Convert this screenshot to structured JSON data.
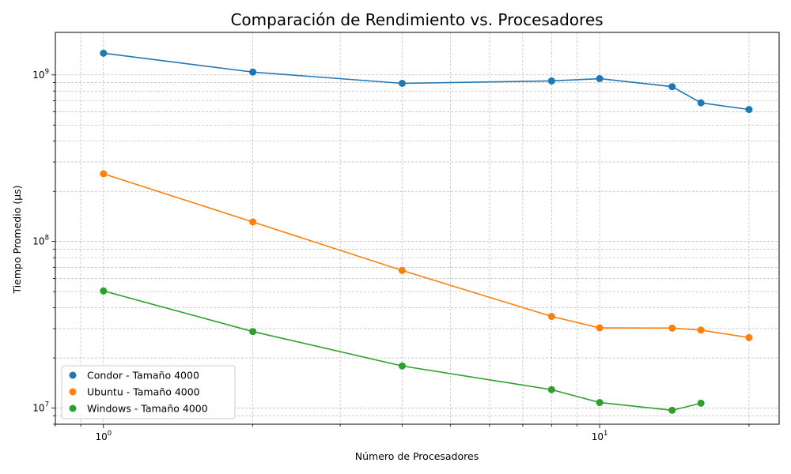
{
  "chart_data": {
    "type": "line",
    "title": "Comparación de Rendimiento vs. Procesadores",
    "xlabel": "Número de Procesadores",
    "ylabel": "Tiempo Promedio (µs)",
    "xscale": "log",
    "yscale": "log",
    "xlim": [
      0.8,
      23
    ],
    "ylim": [
      8000000,
      1800000000
    ],
    "grid": true,
    "legend_position": "lower-left",
    "x_major_ticks": [
      {
        "value": 1,
        "label": "10",
        "sup": "0"
      },
      {
        "value": 10,
        "label": "10",
        "sup": "1"
      }
    ],
    "y_major_ticks": [
      {
        "value": 10000000,
        "label": "10",
        "sup": "7"
      },
      {
        "value": 100000000,
        "label": "10",
        "sup": "8"
      },
      {
        "value": 1000000000,
        "label": "10",
        "sup": "9"
      }
    ],
    "series": [
      {
        "name": "Condor - Tamaño 4000",
        "color": "#1f77b4",
        "x": [
          1,
          2,
          4,
          8,
          10,
          14,
          16,
          20
        ],
        "values": [
          1350000000,
          1040000000,
          890000000,
          920000000,
          950000000,
          850000000,
          680000000,
          620000000
        ]
      },
      {
        "name": "Ubuntu - Tamaño 4000",
        "color": "#ff7f0e",
        "x": [
          1,
          2,
          4,
          8,
          10,
          14,
          16,
          20
        ],
        "values": [
          255000000,
          131000000,
          67000000,
          35500000,
          30300000,
          30200000,
          29400000,
          26500000
        ]
      },
      {
        "name": "Windows - Tamaño 4000",
        "color": "#2ca02c",
        "x": [
          1,
          2,
          4,
          8,
          10,
          14,
          16
        ],
        "values": [
          50500000,
          28800000,
          17900000,
          12900000,
          10800000,
          9700000,
          10700000
        ]
      }
    ]
  }
}
